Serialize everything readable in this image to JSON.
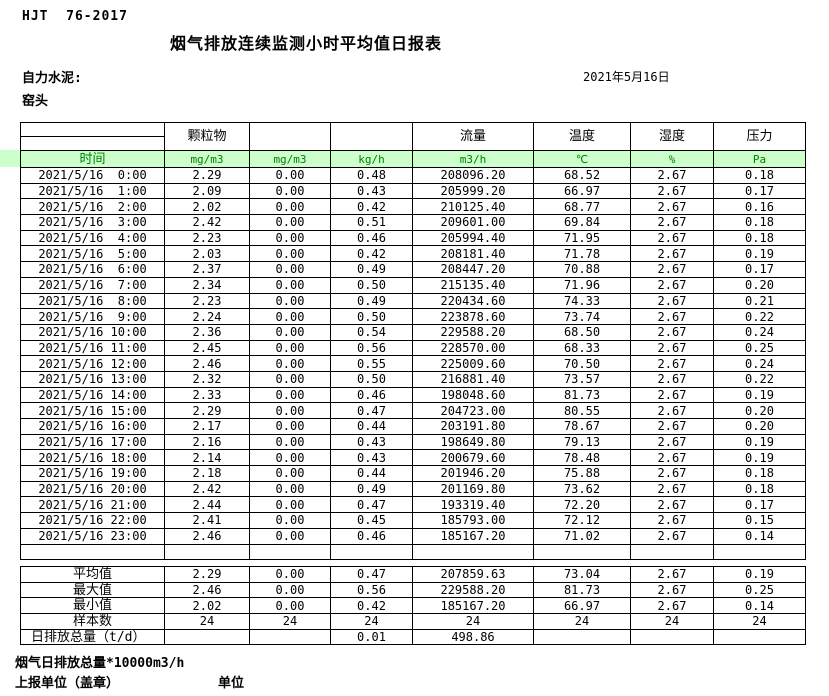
{
  "header": {
    "doc_code": "HJT  76-2017",
    "title": "烟气排放连续监测小时平均值日报表",
    "company": "自力水泥:",
    "date": "2021年5月16日",
    "location": "窑头"
  },
  "table": {
    "group_headers": [
      "",
      "颗粒物",
      "",
      "",
      "流量",
      "温度",
      "湿度",
      "压力"
    ],
    "unit_row": [
      "时间",
      "mg/m3",
      "mg/m3",
      "kg/h",
      "m3/h",
      "℃",
      "%",
      "Pa"
    ],
    "rows": [
      [
        "2021/5/16  0:00",
        "2.29",
        "0.00",
        "0.48",
        "208096.20",
        "68.52",
        "2.67",
        "0.18"
      ],
      [
        "2021/5/16  1:00",
        "2.09",
        "0.00",
        "0.43",
        "205999.20",
        "66.97",
        "2.67",
        "0.17"
      ],
      [
        "2021/5/16  2:00",
        "2.02",
        "0.00",
        "0.42",
        "210125.40",
        "68.77",
        "2.67",
        "0.16"
      ],
      [
        "2021/5/16  3:00",
        "2.42",
        "0.00",
        "0.51",
        "209601.00",
        "69.84",
        "2.67",
        "0.18"
      ],
      [
        "2021/5/16  4:00",
        "2.23",
        "0.00",
        "0.46",
        "205994.40",
        "71.95",
        "2.67",
        "0.18"
      ],
      [
        "2021/5/16  5:00",
        "2.03",
        "0.00",
        "0.42",
        "208181.40",
        "71.78",
        "2.67",
        "0.19"
      ],
      [
        "2021/5/16  6:00",
        "2.37",
        "0.00",
        "0.49",
        "208447.20",
        "70.88",
        "2.67",
        "0.17"
      ],
      [
        "2021/5/16  7:00",
        "2.34",
        "0.00",
        "0.50",
        "215135.40",
        "71.96",
        "2.67",
        "0.20"
      ],
      [
        "2021/5/16  8:00",
        "2.23",
        "0.00",
        "0.49",
        "220434.60",
        "74.33",
        "2.67",
        "0.21"
      ],
      [
        "2021/5/16  9:00",
        "2.24",
        "0.00",
        "0.50",
        "223878.60",
        "73.74",
        "2.67",
        "0.22"
      ],
      [
        "2021/5/16 10:00",
        "2.36",
        "0.00",
        "0.54",
        "229588.20",
        "68.50",
        "2.67",
        "0.24"
      ],
      [
        "2021/5/16 11:00",
        "2.45",
        "0.00",
        "0.56",
        "228570.00",
        "68.33",
        "2.67",
        "0.25"
      ],
      [
        "2021/5/16 12:00",
        "2.46",
        "0.00",
        "0.55",
        "225009.60",
        "70.50",
        "2.67",
        "0.24"
      ],
      [
        "2021/5/16 13:00",
        "2.32",
        "0.00",
        "0.50",
        "216881.40",
        "73.57",
        "2.67",
        "0.22"
      ],
      [
        "2021/5/16 14:00",
        "2.33",
        "0.00",
        "0.46",
        "198048.60",
        "81.73",
        "2.67",
        "0.19"
      ],
      [
        "2021/5/16 15:00",
        "2.29",
        "0.00",
        "0.47",
        "204723.00",
        "80.55",
        "2.67",
        "0.20"
      ],
      [
        "2021/5/16 16:00",
        "2.17",
        "0.00",
        "0.44",
        "203191.80",
        "78.67",
        "2.67",
        "0.20"
      ],
      [
        "2021/5/16 17:00",
        "2.16",
        "0.00",
        "0.43",
        "198649.80",
        "79.13",
        "2.67",
        "0.19"
      ],
      [
        "2021/5/16 18:00",
        "2.14",
        "0.00",
        "0.43",
        "200679.60",
        "78.48",
        "2.67",
        "0.19"
      ],
      [
        "2021/5/16 19:00",
        "2.18",
        "0.00",
        "0.44",
        "201946.20",
        "75.88",
        "2.67",
        "0.18"
      ],
      [
        "2021/5/16 20:00",
        "2.42",
        "0.00",
        "0.49",
        "201169.80",
        "73.62",
        "2.67",
        "0.18"
      ],
      [
        "2021/5/16 21:00",
        "2.44",
        "0.00",
        "0.47",
        "193319.40",
        "72.20",
        "2.67",
        "0.17"
      ],
      [
        "2021/5/16 22:00",
        "2.41",
        "0.00",
        "0.45",
        "185793.00",
        "72.12",
        "2.67",
        "0.15"
      ],
      [
        "2021/5/16 23:00",
        "2.46",
        "0.00",
        "0.46",
        "185167.20",
        "71.02",
        "2.67",
        "0.14"
      ]
    ],
    "summary": [
      {
        "label": "平均值",
        "values": [
          "2.29",
          "0.00",
          "0.47",
          "207859.63",
          "73.04",
          "2.67",
          "0.19"
        ]
      },
      {
        "label": "最大值",
        "values": [
          "2.46",
          "0.00",
          "0.56",
          "229588.20",
          "81.73",
          "2.67",
          "0.25"
        ]
      },
      {
        "label": "最小值",
        "values": [
          "2.02",
          "0.00",
          "0.42",
          "185167.20",
          "66.97",
          "2.67",
          "0.14"
        ]
      },
      {
        "label": "样本数",
        "values": [
          "24",
          "24",
          "24",
          "24",
          "24",
          "24",
          "24"
        ]
      },
      {
        "label": "日排放总量（t/d）",
        "values": [
          "",
          "",
          "0.01",
          "498.86",
          "",
          "",
          ""
        ]
      }
    ]
  },
  "footer": {
    "note": "烟气日排放总量*10000m3/h",
    "report_unit": "上报单位（盖章）",
    "unit": "单位"
  },
  "colors": {
    "green_bg": "#ccffcc",
    "green_text": "#008000"
  }
}
